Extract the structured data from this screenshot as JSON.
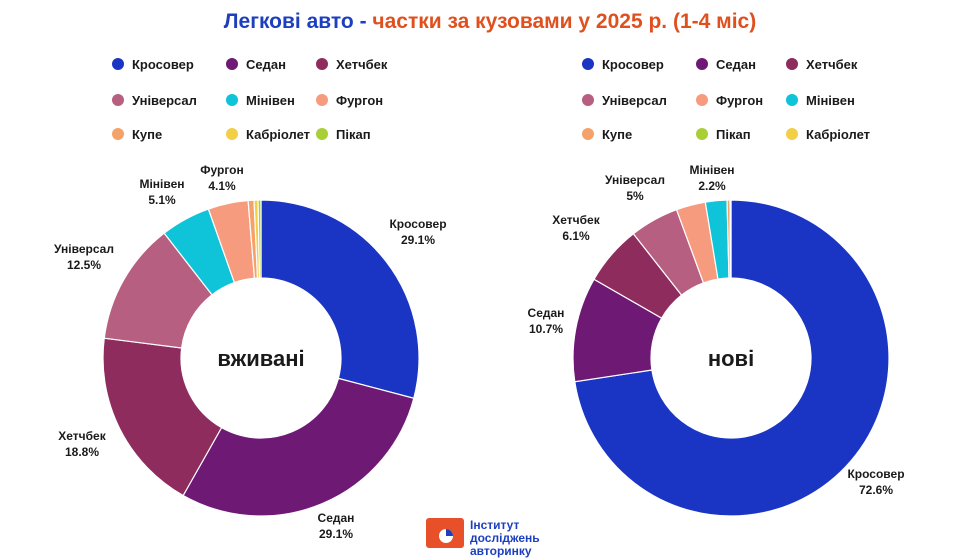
{
  "title": {
    "part1": "Легкові авто -",
    "part2": "частки за кузовами у 2025 р. (1-4 міс)"
  },
  "colors": {
    "Кросовер": "#1a35c4",
    "Седан": "#6e1a75",
    "Хетчбек": "#8e2c5e",
    "Універсал": "#b75f80",
    "Мінівен": "#0fc3d8",
    "Фургон": "#f79b7f",
    "Купе": "#f4a26a",
    "Кабріолет": "#f2cf47",
    "Пікап": "#a9cf37"
  },
  "chart_data": [
    {
      "type": "pie",
      "donut": true,
      "center_label": "вживані",
      "legend": [
        "Кросовер",
        "Седан",
        "Хетчбек",
        "Універсал",
        "Мінівен",
        "Фургон",
        "Купе",
        "Кабріолет",
        "Пікап"
      ],
      "slices": [
        {
          "label": "Кросовер",
          "value": 29.1,
          "text": "29.1%"
        },
        {
          "label": "Седан",
          "value": 29.1,
          "text": "29.1%"
        },
        {
          "label": "Хетчбек",
          "value": 18.8,
          "text": "18.8%"
        },
        {
          "label": "Універсал",
          "value": 12.5,
          "text": "12.5%"
        },
        {
          "label": "Мінівен",
          "value": 5.1,
          "text": "5.1%"
        },
        {
          "label": "Фургон",
          "value": 4.1,
          "text": "4.1%"
        },
        {
          "label": "Купе",
          "value": 0.6,
          "text": ""
        },
        {
          "label": "Кабріолет",
          "value": 0.4,
          "text": ""
        },
        {
          "label": "Пікап",
          "value": 0.3,
          "text": ""
        }
      ]
    },
    {
      "type": "pie",
      "donut": true,
      "center_label": "нові",
      "legend": [
        "Кросовер",
        "Седан",
        "Хетчбек",
        "Універсал",
        "Фургон",
        "Мінівен",
        "Купе",
        "Пікап",
        "Кабріолет"
      ],
      "slices": [
        {
          "label": "Кросовер",
          "value": 72.6,
          "text": "72.6%"
        },
        {
          "label": "Седан",
          "value": 10.7,
          "text": "10.7%"
        },
        {
          "label": "Хетчбек",
          "value": 6.1,
          "text": "6.1%"
        },
        {
          "label": "Універсал",
          "value": 5,
          "text": "5%"
        },
        {
          "label": "Фургон",
          "value": 3,
          "text": ""
        },
        {
          "label": "Мінівен",
          "value": 2.2,
          "text": "2.2%"
        },
        {
          "label": "Купе",
          "value": 0.3,
          "text": ""
        },
        {
          "label": "Пікап",
          "value": 0.05,
          "text": ""
        },
        {
          "label": "Кабріолет",
          "value": 0.05,
          "text": ""
        }
      ]
    }
  ],
  "logo": {
    "line1": "Інститут",
    "line2": "досліджень",
    "line3": "авторинку"
  }
}
